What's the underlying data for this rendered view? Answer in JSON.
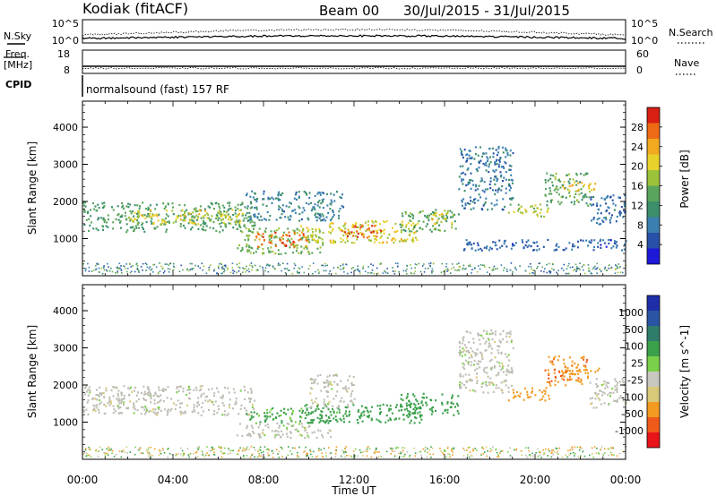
{
  "header": {
    "station": "Kodiak (fitACF)",
    "beam": "Beam 00",
    "dates": "30/Jul/2015 - 31/Jul/2015"
  },
  "strips": {
    "nsky_label": "N.Sky",
    "nsky_ticks": [
      "10^5",
      "10^0"
    ],
    "nsearch_label": "N.Search",
    "nsearch_ticks": [
      "10^5",
      "10^0"
    ],
    "freq_label_1": "Freq.",
    "freq_label_2": "[MHz]",
    "freq_ticks": [
      "18",
      "8"
    ],
    "nave_label": "Nave",
    "nave_ticks": [
      "60",
      "0"
    ],
    "cpid_label": "CPID",
    "cpid_text": "normalsound (fast) 157 RF"
  },
  "colors": {
    "power_scale": [
      "#1e18d9",
      "#2850a8",
      "#3a7fb0",
      "#3b8f6a",
      "#5aa55c",
      "#9cc23a",
      "#e8d12a",
      "#f2a81f",
      "#ee6a14",
      "#d91e12"
    ],
    "velocity_scale": [
      "#e8141a",
      "#ef5a1a",
      "#f29a22",
      "#d8c87a",
      "#c8c8c0",
      "#7ad04a",
      "#3aa04a",
      "#2e7d6a",
      "#2a55a5",
      "#1e2ea8"
    ],
    "ground_scatter": "#bdbdb3"
  },
  "chart_data": [
    {
      "type": "heatmap",
      "name": "power",
      "title": "",
      "xlabel": "Time UT",
      "ylabel": "Slant Range [km]",
      "x_ticks": [
        "00:00",
        "04:00",
        "08:00",
        "12:00",
        "16:00",
        "20:00",
        "00:00"
      ],
      "xlim_hours": [
        0,
        24
      ],
      "y_ticks": [
        1000,
        2000,
        3000,
        4000
      ],
      "ylim": [
        0,
        4700
      ],
      "colorbar_label": "Power [dB]",
      "colorbar_ticks": [
        4,
        8,
        12,
        16,
        20,
        24,
        28
      ],
      "colorbar_range": [
        0,
        32
      ],
      "regions": [
        {
          "t0": 0.0,
          "t1": 7.6,
          "r0": 1200,
          "r1": 2000,
          "value": 13
        },
        {
          "t0": 2.0,
          "t1": 7.2,
          "r0": 1400,
          "r1": 1800,
          "value": 20
        },
        {
          "t0": 6.8,
          "t1": 10.6,
          "r0": 600,
          "r1": 1300,
          "value": 16
        },
        {
          "t0": 7.6,
          "t1": 10.0,
          "r0": 800,
          "r1": 1200,
          "value": 27
        },
        {
          "t0": 7.2,
          "t1": 11.5,
          "r0": 1500,
          "r1": 2300,
          "value": 9
        },
        {
          "t0": 9.6,
          "t1": 14.8,
          "r0": 900,
          "r1": 1500,
          "value": 20
        },
        {
          "t0": 11.4,
          "t1": 13.2,
          "r0": 1050,
          "r1": 1400,
          "value": 28
        },
        {
          "t0": 14.0,
          "t1": 16.6,
          "r0": 1200,
          "r1": 1800,
          "value": 14
        },
        {
          "t0": 15.4,
          "t1": 16.4,
          "r0": 1400,
          "r1": 1800,
          "value": 20
        },
        {
          "t0": 16.6,
          "t1": 19.0,
          "r0": 1800,
          "r1": 3500,
          "value": 8
        },
        {
          "t0": 18.8,
          "t1": 20.6,
          "r0": 1600,
          "r1": 1950,
          "value": 18
        },
        {
          "t0": 20.4,
          "t1": 22.4,
          "r0": 1900,
          "r1": 2800,
          "value": 14
        },
        {
          "t0": 21.2,
          "t1": 22.8,
          "r0": 2300,
          "r1": 2550,
          "value": 22
        },
        {
          "t0": 22.4,
          "t1": 24.0,
          "r0": 1400,
          "r1": 2200,
          "value": 7
        },
        {
          "t0": 16.8,
          "t1": 24.0,
          "r0": 700,
          "r1": 1000,
          "value": 6
        }
      ]
    },
    {
      "type": "heatmap",
      "name": "velocity",
      "title": "",
      "xlabel": "Time UT",
      "ylabel": "Slant Range [km]",
      "x_ticks": [
        "00:00",
        "04:00",
        "08:00",
        "12:00",
        "16:00",
        "20:00",
        "00:00"
      ],
      "xlim_hours": [
        0,
        24
      ],
      "y_ticks": [
        1000,
        2000,
        3000,
        4000
      ],
      "ylim": [
        0,
        4700
      ],
      "colorbar_label": "Velocity [m s^-1]",
      "colorbar_ticks": [
        "1000",
        "500",
        "100",
        "25",
        "-25",
        "-100",
        "-500",
        "-1000"
      ],
      "regions": [
        {
          "t0": 0.0,
          "t1": 7.6,
          "r0": 1200,
          "r1": 2000,
          "value": 0
        },
        {
          "t0": 6.8,
          "t1": 11.0,
          "r0": 600,
          "r1": 1000,
          "value": 0
        },
        {
          "t0": 7.2,
          "t1": 11.4,
          "r0": 1000,
          "r1": 1400,
          "value": 150
        },
        {
          "t0": 9.8,
          "t1": 15.0,
          "r0": 1000,
          "r1": 1500,
          "value": 300
        },
        {
          "t0": 10.0,
          "t1": 12.0,
          "r0": 1400,
          "r1": 2300,
          "value": 0
        },
        {
          "t0": 14.0,
          "t1": 16.6,
          "r0": 1200,
          "r1": 1800,
          "value": 250
        },
        {
          "t0": 16.6,
          "t1": 19.0,
          "r0": 1800,
          "r1": 3500,
          "value": 0
        },
        {
          "t0": 18.8,
          "t1": 20.6,
          "r0": 1600,
          "r1": 1950,
          "value": -300
        },
        {
          "t0": 20.4,
          "t1": 22.4,
          "r0": 2000,
          "r1": 2800,
          "value": -400
        },
        {
          "t0": 21.2,
          "t1": 22.8,
          "r0": 2300,
          "r1": 2550,
          "value": -250
        },
        {
          "t0": 22.4,
          "t1": 24.0,
          "r0": 1400,
          "r1": 2200,
          "value": 0
        }
      ]
    }
  ]
}
